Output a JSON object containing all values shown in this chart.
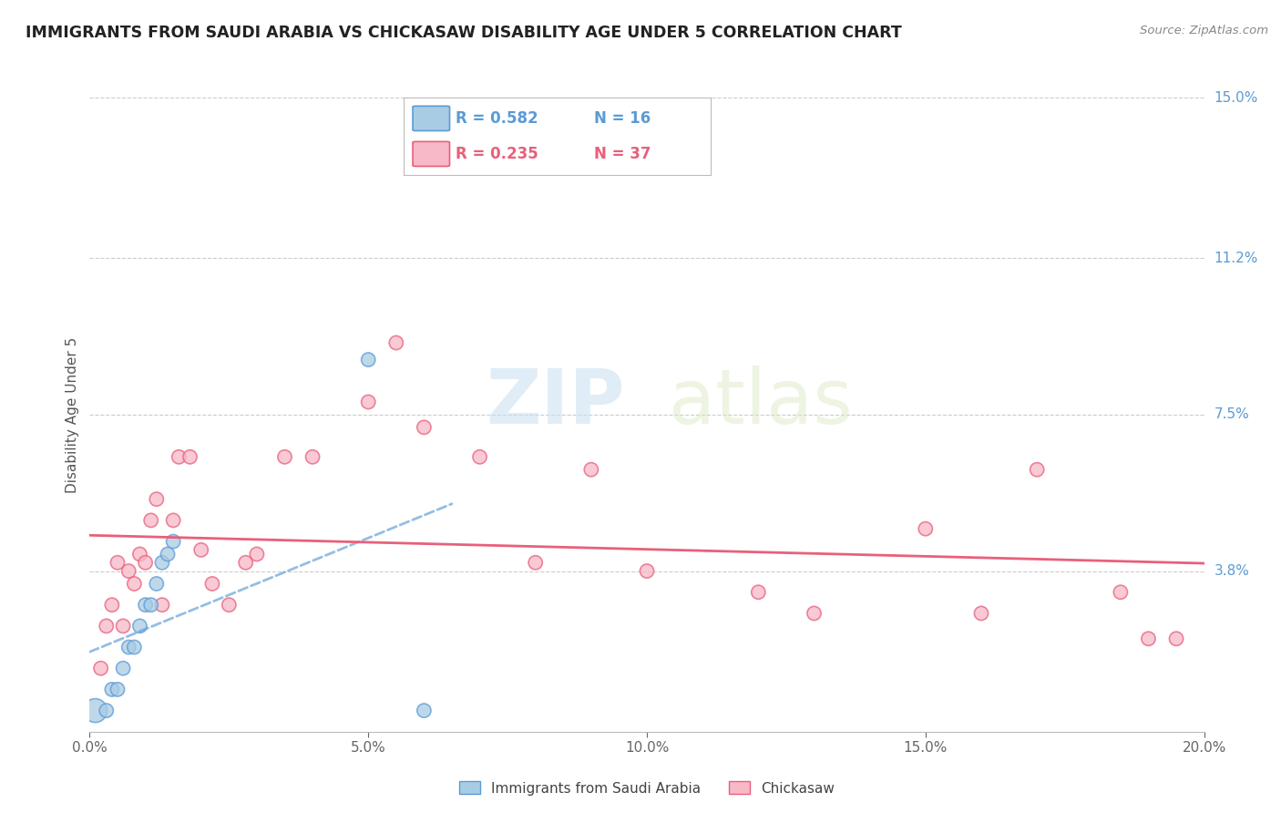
{
  "title": "IMMIGRANTS FROM SAUDI ARABIA VS CHICKASAW DISABILITY AGE UNDER 5 CORRELATION CHART",
  "source": "Source: ZipAtlas.com",
  "ylabel": "Disability Age Under 5",
  "xlim": [
    0.0,
    0.2
  ],
  "ylim": [
    0.0,
    0.15
  ],
  "xtick_labels": [
    "0.0%",
    "5.0%",
    "10.0%",
    "15.0%",
    "20.0%"
  ],
  "xtick_vals": [
    0.0,
    0.05,
    0.1,
    0.15,
    0.2
  ],
  "ytick_labels": [
    "3.8%",
    "7.5%",
    "11.2%",
    "15.0%"
  ],
  "ytick_vals": [
    0.038,
    0.075,
    0.112,
    0.15
  ],
  "legend_r1": "R = 0.582",
  "legend_n1": "N = 16",
  "legend_r2": "R = 0.235",
  "legend_n2": "N = 37",
  "color_blue": "#a8cce4",
  "color_pink": "#f7b8c8",
  "color_line_blue": "#5b9bd5",
  "color_line_pink": "#e8607a",
  "watermark_zip": "ZIP",
  "watermark_atlas": "atlas",
  "blue_scatter_x": [
    0.001,
    0.003,
    0.004,
    0.005,
    0.006,
    0.007,
    0.008,
    0.009,
    0.01,
    0.011,
    0.012,
    0.013,
    0.014,
    0.015,
    0.05,
    0.06
  ],
  "blue_scatter_y": [
    0.005,
    0.005,
    0.01,
    0.01,
    0.015,
    0.02,
    0.02,
    0.025,
    0.03,
    0.03,
    0.035,
    0.04,
    0.042,
    0.045,
    0.088,
    0.005
  ],
  "blue_scatter_sizes": [
    350,
    120,
    120,
    120,
    120,
    120,
    120,
    120,
    120,
    120,
    120,
    120,
    120,
    120,
    120,
    120
  ],
  "pink_scatter_x": [
    0.002,
    0.003,
    0.004,
    0.005,
    0.006,
    0.007,
    0.008,
    0.009,
    0.01,
    0.011,
    0.012,
    0.013,
    0.015,
    0.016,
    0.018,
    0.02,
    0.022,
    0.025,
    0.028,
    0.03,
    0.035,
    0.04,
    0.05,
    0.055,
    0.06,
    0.07,
    0.08,
    0.09,
    0.1,
    0.12,
    0.13,
    0.15,
    0.16,
    0.17,
    0.185,
    0.19,
    0.195
  ],
  "pink_scatter_y": [
    0.015,
    0.025,
    0.03,
    0.04,
    0.025,
    0.038,
    0.035,
    0.042,
    0.04,
    0.05,
    0.055,
    0.03,
    0.05,
    0.065,
    0.065,
    0.043,
    0.035,
    0.03,
    0.04,
    0.042,
    0.065,
    0.065,
    0.078,
    0.092,
    0.072,
    0.065,
    0.04,
    0.062,
    0.038,
    0.033,
    0.028,
    0.048,
    0.028,
    0.062,
    0.033,
    0.022,
    0.022
  ],
  "pink_scatter_sizes": [
    120,
    120,
    120,
    120,
    120,
    120,
    120,
    120,
    120,
    120,
    120,
    120,
    120,
    120,
    120,
    120,
    120,
    120,
    120,
    120,
    120,
    120,
    120,
    120,
    120,
    120,
    120,
    120,
    120,
    120,
    120,
    120,
    120,
    120,
    120,
    120,
    120
  ],
  "legend_bottom_blue": "Immigrants from Saudi Arabia",
  "legend_bottom_pink": "Chickasaw"
}
